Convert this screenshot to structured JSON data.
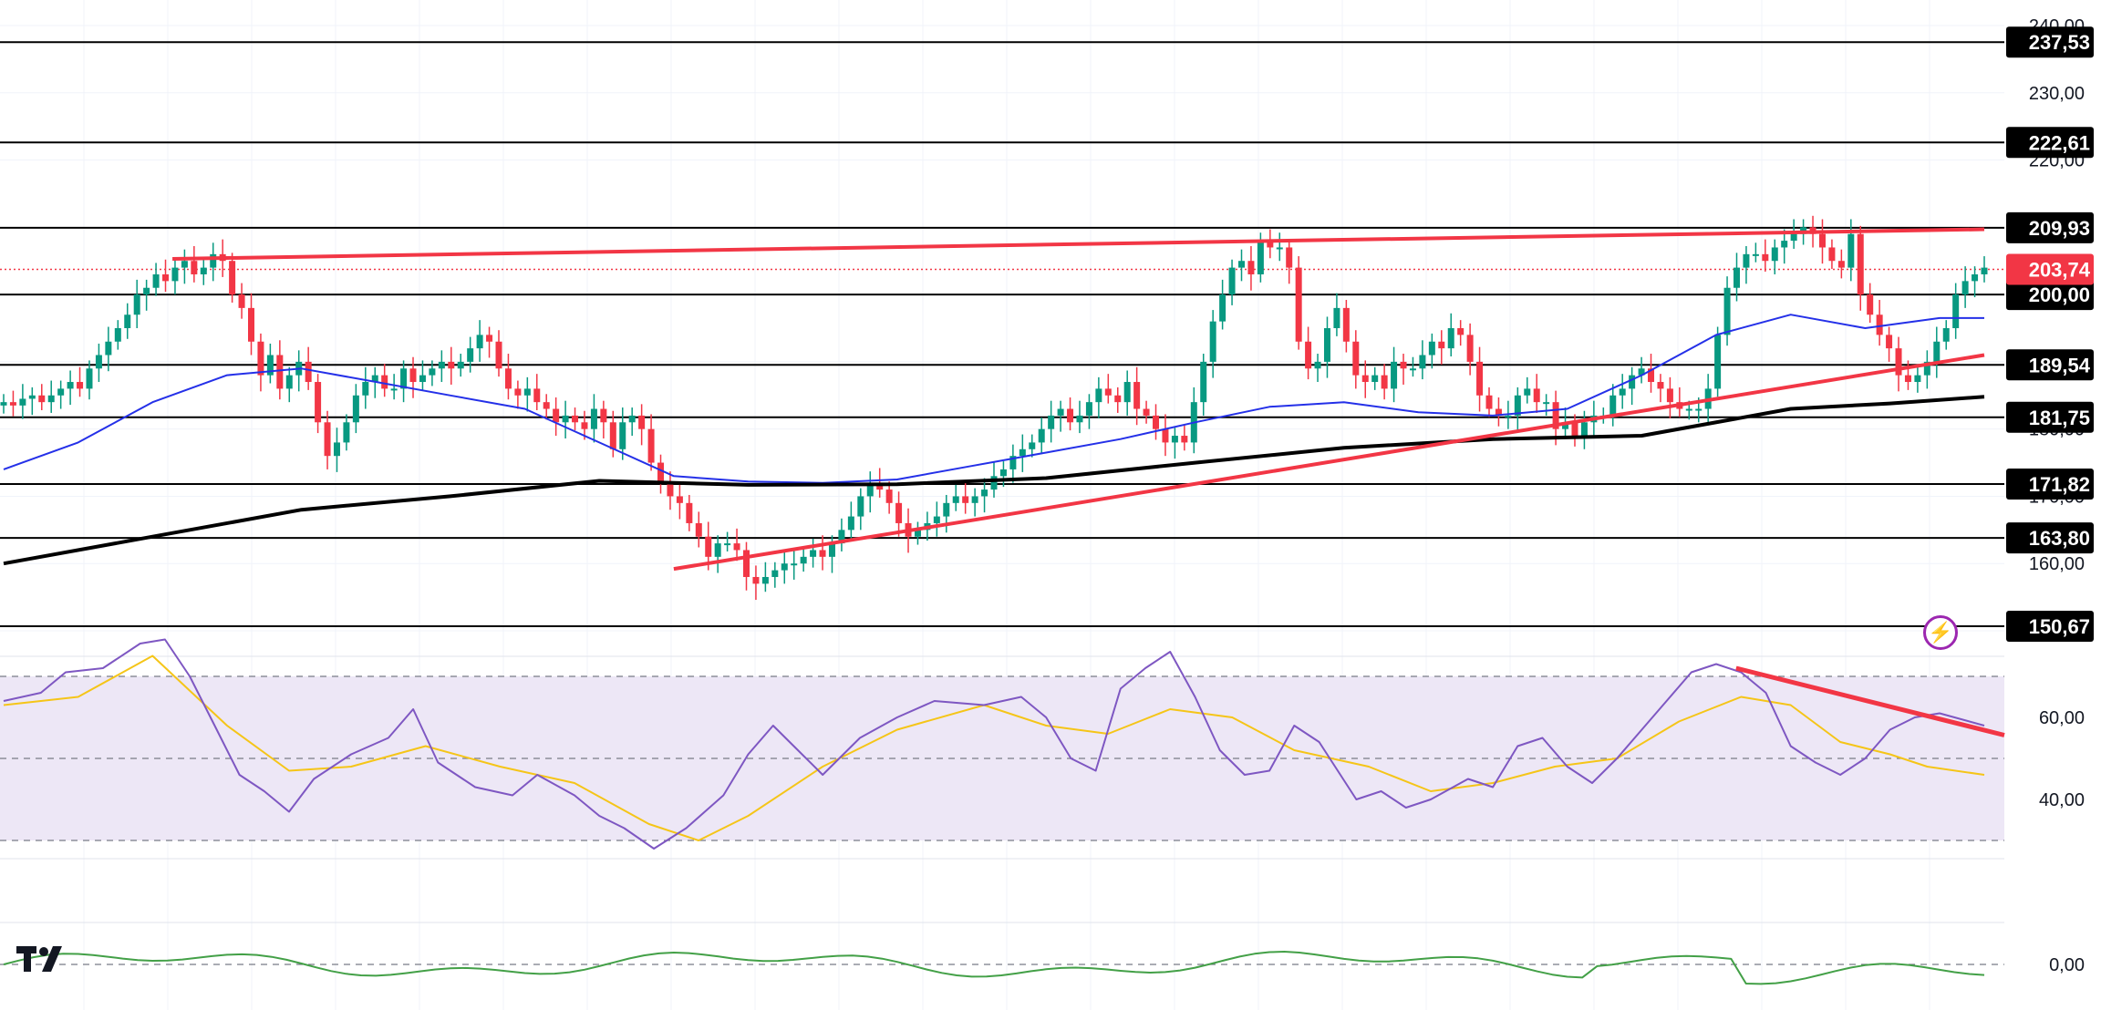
{
  "chart_data": [
    {
      "type": "candlestick",
      "title": "",
      "ylim": [
        150,
        240
      ],
      "y_ticks": [
        "240,00",
        "230,00",
        "220,00",
        "200,00",
        "190,00",
        "180,00",
        "170,00",
        "160,00"
      ],
      "current_price": "203,74",
      "current_price_value": 203.74,
      "horizontal_levels": [
        {
          "value": 237.53,
          "label": "237,53"
        },
        {
          "value": 222.61,
          "label": "222,61"
        },
        {
          "value": 209.93,
          "label": "209,93"
        },
        {
          "value": 200.0,
          "label": "200,00"
        },
        {
          "value": 189.54,
          "label": "189,54"
        },
        {
          "value": 181.75,
          "label": "181,75"
        },
        {
          "value": 171.82,
          "label": "171,82"
        },
        {
          "value": 163.8,
          "label": "163,80"
        },
        {
          "value": 150.67,
          "label": "150,67"
        }
      ],
      "close_series": [
        184,
        183.5,
        184.5,
        185,
        184,
        185,
        186,
        187,
        186,
        189,
        191,
        193,
        195,
        197,
        200,
        201,
        203,
        202,
        204,
        205,
        203,
        204,
        206,
        205,
        200,
        198,
        193,
        188,
        191,
        186,
        188,
        190,
        187,
        181,
        176,
        178,
        181,
        185,
        187,
        188,
        186,
        186,
        189,
        187,
        188,
        189,
        190,
        189,
        190,
        192,
        194,
        193,
        189,
        186,
        185,
        186,
        184,
        183,
        181,
        182,
        181,
        180,
        183,
        181,
        177,
        181,
        182,
        180,
        175,
        172,
        170,
        169,
        166,
        164,
        161,
        163,
        163,
        162,
        158,
        157,
        158,
        159,
        160,
        160,
        161,
        162,
        161,
        163,
        165,
        167,
        170,
        172,
        171,
        169,
        166,
        164,
        165,
        166,
        167,
        169,
        170,
        169,
        170,
        171,
        173,
        174,
        176,
        177,
        178,
        180,
        182,
        183,
        181,
        182,
        184,
        186,
        185,
        184,
        187,
        183,
        182,
        180,
        178,
        179,
        178,
        184,
        190,
        196,
        200,
        204,
        205,
        203,
        208,
        207,
        207,
        204,
        193,
        189,
        190,
        195,
        198,
        193,
        188,
        187,
        188,
        186,
        190,
        189,
        189,
        191,
        193,
        192,
        195,
        194,
        190,
        185,
        183,
        182,
        182,
        185,
        186,
        184,
        184,
        180,
        181,
        179,
        181,
        182,
        182,
        185,
        186,
        188,
        189,
        187,
        186,
        184,
        183,
        183,
        183,
        186,
        194,
        201,
        204,
        206,
        206,
        205,
        207,
        208,
        209,
        210,
        209,
        207,
        205,
        204,
        209,
        200,
        197,
        194,
        192,
        188,
        187,
        188,
        190,
        193,
        195,
        200,
        202,
        203,
        204
      ],
      "ma50": [
        [
          0,
          174
        ],
        [
          30,
          178
        ],
        [
          60,
          184
        ],
        [
          90,
          188
        ],
        [
          120,
          189
        ],
        [
          150,
          187
        ],
        [
          180,
          185
        ],
        [
          210,
          183
        ],
        [
          240,
          178
        ],
        [
          270,
          173
        ],
        [
          300,
          172.2
        ],
        [
          330,
          172
        ],
        [
          360,
          172.5
        ],
        [
          390,
          174.5
        ],
        [
          420,
          176.5
        ],
        [
          450,
          178.5
        ],
        [
          480,
          181
        ],
        [
          510,
          183.3
        ],
        [
          540,
          184
        ],
        [
          570,
          182.5
        ],
        [
          600,
          182
        ],
        [
          630,
          183
        ],
        [
          660,
          188
        ],
        [
          690,
          194
        ],
        [
          720,
          197
        ],
        [
          750,
          195
        ],
        [
          780,
          196.5
        ],
        [
          798,
          196.5
        ]
      ],
      "ma200": [
        [
          0,
          160
        ],
        [
          60,
          164
        ],
        [
          120,
          168
        ],
        [
          180,
          170
        ],
        [
          240,
          172.3
        ],
        [
          300,
          171.7
        ],
        [
          360,
          171.8
        ],
        [
          420,
          172.7
        ],
        [
          480,
          175
        ],
        [
          540,
          177.2
        ],
        [
          600,
          178.5
        ],
        [
          660,
          179
        ],
        [
          720,
          183
        ],
        [
          760,
          183.8
        ],
        [
          798,
          184.8
        ]
      ],
      "trendlines": [
        {
          "from": [
            68,
            205.3
          ],
          "to": [
            798,
            209.7
          ]
        },
        {
          "from": [
            270,
            159.2
          ],
          "to": [
            798,
            191.0
          ]
        }
      ]
    },
    {
      "type": "line",
      "name": "RSI",
      "ylim": [
        25,
        79
      ],
      "y_ticks": [
        "60,00",
        "40,00"
      ],
      "levels": [
        70,
        50,
        30
      ],
      "rsi": [
        [
          0,
          64
        ],
        [
          15,
          66
        ],
        [
          25,
          71
        ],
        [
          40,
          72
        ],
        [
          55,
          78
        ],
        [
          65,
          80
        ],
        [
          75,
          70
        ],
        [
          85,
          58
        ],
        [
          95,
          46
        ],
        [
          105,
          42
        ],
        [
          115,
          37
        ],
        [
          125,
          45
        ],
        [
          140,
          51
        ],
        [
          155,
          55
        ],
        [
          165,
          62
        ],
        [
          175,
          49
        ],
        [
          190,
          43
        ],
        [
          205,
          41
        ],
        [
          215,
          46
        ],
        [
          230,
          41
        ],
        [
          240,
          36
        ],
        [
          250,
          33
        ],
        [
          262,
          28
        ],
        [
          275,
          33
        ],
        [
          290,
          41
        ],
        [
          300,
          51
        ],
        [
          310,
          58
        ],
        [
          320,
          52
        ],
        [
          330,
          46
        ],
        [
          345,
          55
        ],
        [
          360,
          60
        ],
        [
          375,
          64
        ],
        [
          395,
          63
        ],
        [
          410,
          65
        ],
        [
          420,
          60
        ],
        [
          430,
          50
        ],
        [
          440,
          47
        ],
        [
          450,
          67
        ],
        [
          460,
          72
        ],
        [
          470,
          76
        ],
        [
          480,
          65
        ],
        [
          490,
          52
        ],
        [
          500,
          46
        ],
        [
          510,
          47
        ],
        [
          520,
          58
        ],
        [
          530,
          54
        ],
        [
          545,
          40
        ],
        [
          555,
          42
        ],
        [
          565,
          38
        ],
        [
          575,
          40
        ],
        [
          590,
          45
        ],
        [
          600,
          43
        ],
        [
          610,
          53
        ],
        [
          620,
          55
        ],
        [
          630,
          48
        ],
        [
          640,
          44
        ],
        [
          650,
          50
        ],
        [
          660,
          57
        ],
        [
          670,
          64
        ],
        [
          680,
          71
        ],
        [
          690,
          73
        ],
        [
          700,
          71
        ],
        [
          710,
          66
        ],
        [
          720,
          53
        ],
        [
          730,
          49
        ],
        [
          740,
          46
        ],
        [
          750,
          50
        ],
        [
          760,
          57
        ],
        [
          770,
          60
        ],
        [
          780,
          61
        ],
        [
          798,
          58
        ]
      ],
      "rsi_ma": [
        [
          0,
          63
        ],
        [
          30,
          65
        ],
        [
          60,
          75
        ],
        [
          90,
          58
        ],
        [
          115,
          47
        ],
        [
          140,
          48
        ],
        [
          170,
          53
        ],
        [
          200,
          48
        ],
        [
          230,
          44
        ],
        [
          260,
          34
        ],
        [
          280,
          30
        ],
        [
          300,
          36
        ],
        [
          330,
          48
        ],
        [
          360,
          57
        ],
        [
          395,
          63
        ],
        [
          420,
          58
        ],
        [
          445,
          56
        ],
        [
          470,
          62
        ],
        [
          495,
          60
        ],
        [
          520,
          52
        ],
        [
          550,
          48
        ],
        [
          575,
          42
        ],
        [
          600,
          44
        ],
        [
          625,
          48
        ],
        [
          650,
          50
        ],
        [
          675,
          59
        ],
        [
          700,
          65
        ],
        [
          720,
          63
        ],
        [
          740,
          54
        ],
        [
          760,
          51
        ],
        [
          775,
          48
        ],
        [
          798,
          46
        ]
      ],
      "trendlines": [
        {
          "from": [
            698,
            72
          ],
          "to": [
            798,
            57
          ]
        }
      ]
    },
    {
      "type": "line",
      "name": "Momentum",
      "y_ticks": [
        "0,00"
      ],
      "zero_level": 0
    }
  ],
  "colors": {
    "up": "#089981",
    "down": "#f23645",
    "ma50": "#2430e8",
    "ma200": "#000000",
    "level": "#000000",
    "trendline": "#f23645",
    "rsi": "#7e57c2",
    "rsi_ma": "#f5c518",
    "rsi_band": "#ede7f6",
    "momentum": "#43a047",
    "grid": "#f0f3fa"
  },
  "icons": {
    "logo": "tradingview-logo-icon",
    "lightning": "lightning-icon"
  }
}
